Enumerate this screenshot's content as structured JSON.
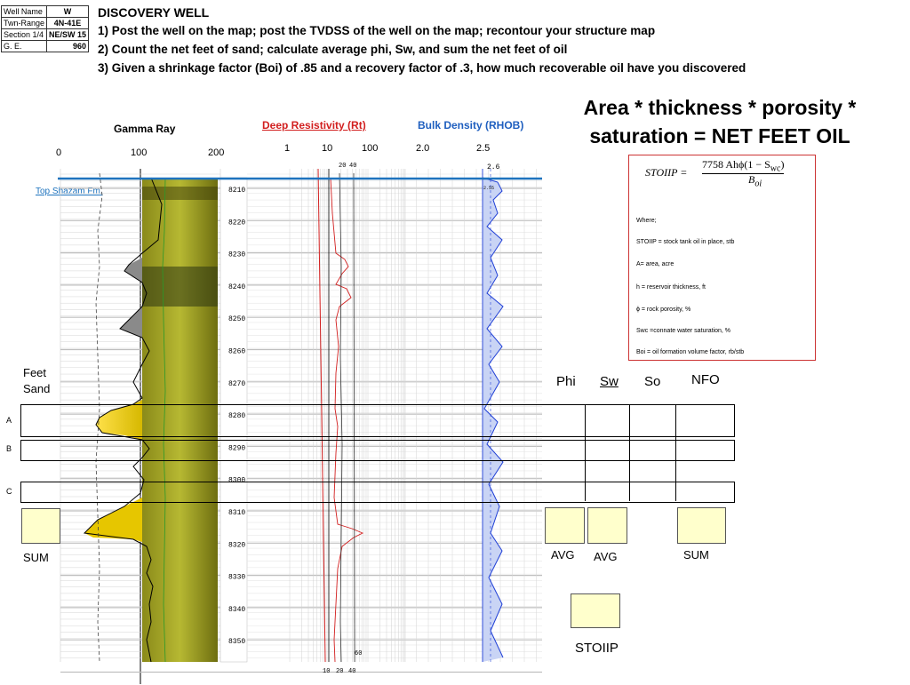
{
  "info": {
    "rows": [
      {
        "label": "Well Name",
        "value": "W"
      },
      {
        "label": "Twn-Range",
        "value": "4N-41E"
      },
      {
        "label": "Section 1/4",
        "value": "NE/SW 15"
      },
      {
        "label": "G. E.",
        "value": "960"
      }
    ]
  },
  "header": {
    "title": "DISCOVERY WELL",
    "steps": [
      "1) Post the well on the map; post the TVDSS of the well on the map; recontour your structure map",
      "2) Count the net feet of sand; calculate average phi, Sw, and sum the net feet of oil",
      "3) Given a shrinkage factor (Boi) of .85 and a recovery factor of .3, how much recoverable oil have you discovered"
    ]
  },
  "tracks": {
    "gamma": {
      "title": "Gamma Ray",
      "ticks": [
        "0",
        "100",
        "200"
      ]
    },
    "resistivity": {
      "title": "Deep Resistivity (Rt)",
      "ticks": [
        "1",
        "10",
        "100"
      ],
      "inner_top": [
        "20",
        "40"
      ],
      "inner_bottom": [
        "10",
        "20",
        "40"
      ],
      "inner_low": "60"
    },
    "density": {
      "title": "Bulk Density (RHOB)",
      "ticks": [
        "2.0",
        "2.5"
      ],
      "sub": "2.6",
      "sub2": "2.55"
    }
  },
  "formation_top": "Top Shazam Fm.",
  "depths": [
    "8210",
    "8220",
    "8230",
    "8240",
    "8250",
    "8260",
    "8270",
    "8280",
    "8290",
    "8300",
    "8310",
    "8320",
    "8330",
    "8340",
    "8350"
  ],
  "formula": {
    "line1": "Area * thickness * porosity *",
    "line2": "saturation = NET FEET OIL",
    "stoiip_lhs": "STOIIP =",
    "numerator": "7758 Ahϕ(1 − S",
    "num_sub": "wc",
    "num_end": ")",
    "denominator": "B",
    "den_sub": "oi"
  },
  "legend": {
    "where": "Where;",
    "items": [
      "STOIIP = stock tank oil in place, stb",
      "A= area, acre",
      "h = reservoir thickness, ft",
      "ϕ = rock porosity, %",
      "Swc =connate water saturation, %",
      "Boi = oil formation volume factor, rb/stb"
    ]
  },
  "left_labels": {
    "feet": "Feet",
    "sand": "Sand",
    "sum": "SUM",
    "rows": [
      "A",
      "B",
      "C"
    ]
  },
  "columns": {
    "phi": "Phi",
    "sw": "Sw",
    "so": "So",
    "nfo": "NFO"
  },
  "bottom": {
    "avg1": "AVG",
    "avg2": "AVG",
    "sum": "SUM",
    "stoiip": "STOIIP"
  },
  "colors": {
    "well_top": "#1e73be",
    "res_red": "#d21f1f",
    "density_blue": "#1f3fd6",
    "density_fill": "#c9d4f5",
    "answer_box": "#ffffcc",
    "legend_border": "#cc3333"
  }
}
